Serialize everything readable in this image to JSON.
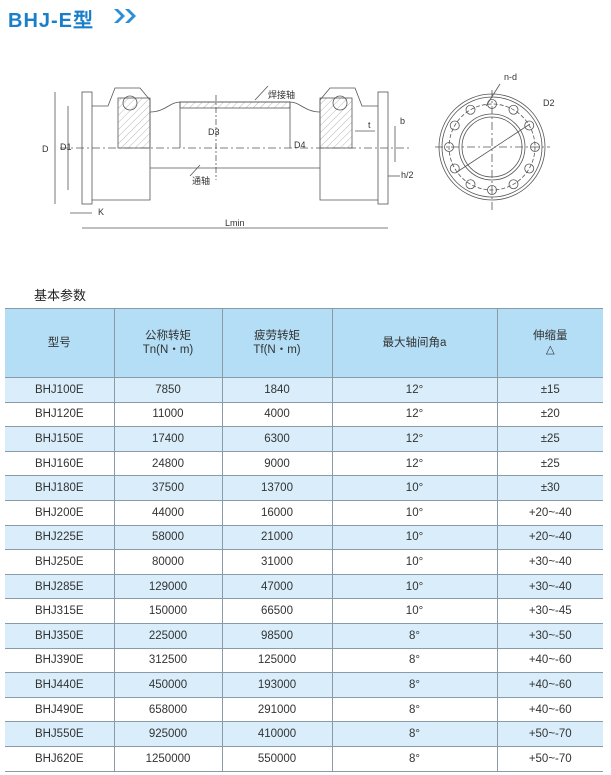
{
  "title": "BHJ-E型",
  "drawing": {
    "labels": {
      "D": "D",
      "D1": "D1",
      "D3": "D3",
      "D4": "D4",
      "weld_shaft": "焊接轴",
      "through_shaft": "通轴",
      "K": "K",
      "Lmin": "Lmin",
      "t": "t",
      "b": "b",
      "h2": "h/2",
      "nd": "n-d",
      "D2": "D2"
    }
  },
  "section_title": "基本参数",
  "table": {
    "headers": [
      [
        "型号",
        ""
      ],
      [
        "公称转矩",
        "Tn(N・m)"
      ],
      [
        "疲劳转矩",
        "Tf(N・m)"
      ],
      [
        "最大轴间角a",
        ""
      ],
      [
        "伸缩量",
        "△"
      ]
    ],
    "rows": [
      [
        "BHJ100E",
        "7850",
        "1840",
        "12°",
        "±15"
      ],
      [
        "BHJ120E",
        "11000",
        "4000",
        "12°",
        "±20"
      ],
      [
        "BHJ150E",
        "17400",
        "6300",
        "12°",
        "±25"
      ],
      [
        "BHJ160E",
        "24800",
        "9000",
        "12°",
        "±25"
      ],
      [
        "BHJ180E",
        "37500",
        "13700",
        "10°",
        "±30"
      ],
      [
        "BHJ200E",
        "44000",
        "16000",
        "10°",
        "+20~-40"
      ],
      [
        "BHJ225E",
        "58000",
        "21000",
        "10°",
        "+20~-40"
      ],
      [
        "BHJ250E",
        "80000",
        "31000",
        "10°",
        "+30~-40"
      ],
      [
        "BHJ285E",
        "129000",
        "47000",
        "10°",
        "+30~-40"
      ],
      [
        "BHJ315E",
        "150000",
        "66500",
        "10°",
        "+30~-45"
      ],
      [
        "BHJ350E",
        "225000",
        "98500",
        "8°",
        "+30~-50"
      ],
      [
        "BHJ390E",
        "312500",
        "125000",
        "8°",
        "+40~-60"
      ],
      [
        "BHJ440E",
        "450000",
        "193000",
        "8°",
        "+40~-60"
      ],
      [
        "BHJ490E",
        "658000",
        "291000",
        "8°",
        "+40~-60"
      ],
      [
        "BHJ550E",
        "925000",
        "410000",
        "8°",
        "+50~-70"
      ],
      [
        "BHJ620E",
        "1250000",
        "550000",
        "8°",
        "+50~-70"
      ]
    ]
  },
  "colors": {
    "title": "#1a7fc8",
    "header_bg": "#b3def5",
    "odd_row_bg": "#d9eefa"
  }
}
